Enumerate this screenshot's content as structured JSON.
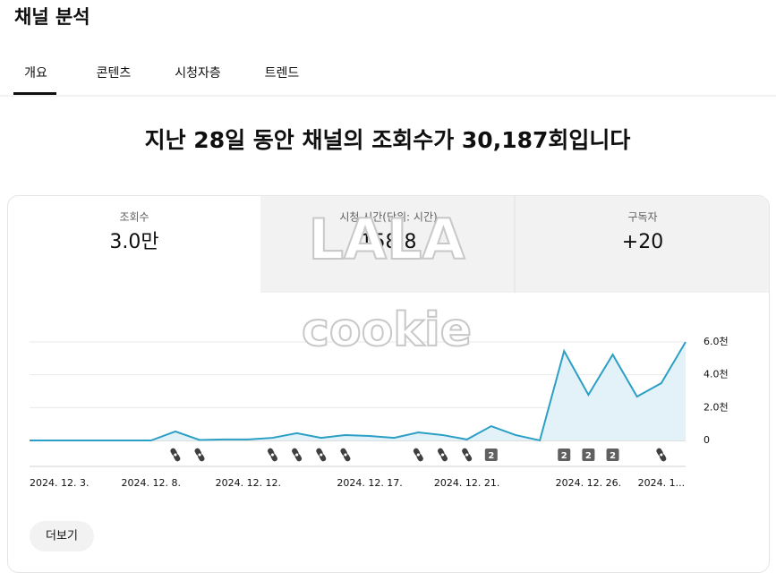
{
  "header": {
    "title": "채널 분석"
  },
  "tabs": [
    "개요",
    "콘텐츠",
    "시청자층",
    "트렌드"
  ],
  "headline": "지난 28일 동안 채널의 조회수가 30,187회입니다",
  "metrics": [
    {
      "label": "조회수",
      "value": "3.0만"
    },
    {
      "label": "시청 시간(단위: 시간)",
      "value": "158.8"
    },
    {
      "label": "구독자",
      "value": "+20"
    }
  ],
  "watermark": [
    "LALA",
    "cookie"
  ],
  "chart_data": {
    "type": "line",
    "categories": [
      "2024. 12. 3.",
      null,
      null,
      null,
      null,
      "2024. 12. 8.",
      null,
      null,
      null,
      "2024. 12. 12.",
      null,
      null,
      null,
      null,
      "2024. 12. 17.",
      null,
      null,
      null,
      "2024. 12. 21.",
      null,
      null,
      null,
      null,
      "2024. 12. 26.",
      null,
      null,
      "2024. 1...",
      null
    ],
    "values": [
      0,
      0,
      0,
      0,
      0,
      0,
      550,
      30,
      60,
      60,
      160,
      440,
      160,
      330,
      270,
      160,
      490,
      330,
      60,
      870,
      330,
      0,
      5450,
      2780,
      5230,
      2670,
      3490,
      6000
    ],
    "color": "#2b9fc4",
    "fill_color": "#e3f2f8",
    "ylim": [
      0,
      6000
    ],
    "yticks": [
      0,
      {
        "value": 2000,
        "label": "2.0천"
      },
      {
        "value": 4000,
        "label": "4.0천"
      },
      {
        "value": 6000,
        "label": "6.0천"
      }
    ],
    "grid": true,
    "y_axis_side": "right",
    "uploads": [
      {
        "index": 6,
        "kind": "shorts"
      },
      {
        "index": 7,
        "kind": "shorts"
      },
      {
        "index": 10,
        "kind": "shorts"
      },
      {
        "index": 11,
        "kind": "shorts"
      },
      {
        "index": 12,
        "kind": "shorts"
      },
      {
        "index": 13,
        "kind": "shorts"
      },
      {
        "index": 16,
        "kind": "shorts"
      },
      {
        "index": 17,
        "kind": "shorts"
      },
      {
        "index": 18,
        "kind": "shorts"
      },
      {
        "index": 19,
        "kind": "count",
        "label": "2"
      },
      {
        "index": 22,
        "kind": "count",
        "label": "2"
      },
      {
        "index": 23,
        "kind": "count",
        "label": "2"
      },
      {
        "index": 24,
        "kind": "count",
        "label": "2"
      },
      {
        "index": 26,
        "kind": "shorts"
      }
    ]
  },
  "button": "더보기"
}
